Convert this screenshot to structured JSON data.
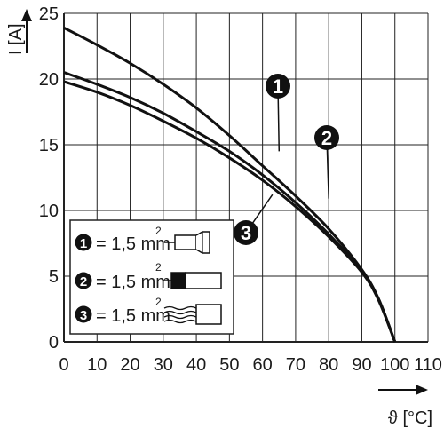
{
  "chart_data": {
    "type": "line",
    "title": "",
    "xlabel": "ϑ [°C]",
    "ylabel": "I [A]",
    "xlim": [
      0,
      110
    ],
    "ylim": [
      0,
      25
    ],
    "xticks": [
      0,
      10,
      20,
      30,
      40,
      50,
      60,
      70,
      80,
      90,
      100,
      110
    ],
    "yticks": [
      0,
      5,
      10,
      15,
      20,
      25
    ],
    "grid": true,
    "series": [
      {
        "name": "1",
        "x": [
          0,
          10,
          20,
          30,
          40,
          50,
          60,
          70,
          80,
          90,
          95,
          100
        ],
        "y": [
          23.9,
          22.6,
          21.2,
          19.6,
          17.8,
          15.7,
          13.4,
          11.1,
          8.6,
          5.5,
          3.3,
          0
        ]
      },
      {
        "name": "2",
        "x": [
          0,
          10,
          20,
          30,
          40,
          50,
          60,
          70,
          80,
          90,
          95,
          100
        ],
        "y": [
          20.5,
          19.6,
          18.6,
          17.4,
          16.0,
          14.5,
          12.7,
          10.6,
          8.2,
          5.4,
          3.3,
          0
        ]
      },
      {
        "name": "3",
        "x": [
          0,
          10,
          20,
          30,
          40,
          50,
          60,
          70,
          80,
          90,
          95,
          100
        ],
        "y": [
          19.8,
          19.0,
          18.0,
          16.8,
          15.5,
          14.0,
          12.3,
          10.3,
          8.0,
          5.3,
          3.2,
          0
        ]
      }
    ],
    "markers": [
      {
        "label": "1",
        "x": 65,
        "y": 14.5
      },
      {
        "label": "2",
        "x": 80,
        "y": 10.9
      },
      {
        "label": "3",
        "x": 63,
        "y": 11.2
      }
    ],
    "legend": {
      "placement": "lower-left",
      "entries": [
        {
          "num": "1",
          "text": "= 1,5 mm",
          "sup": "2",
          "icon": "ferrule-icon"
        },
        {
          "num": "2",
          "text": "= 1,5 mm",
          "sup": "2",
          "icon": "insulated-ferrule-icon"
        },
        {
          "num": "3",
          "text": "= 1,5 mm",
          "sup": "2",
          "icon": "stranded-wire-icon"
        }
      ]
    },
    "colors": {
      "line": "#111111",
      "grid": "#222222",
      "marker": "#111111",
      "background": "#ffffff"
    }
  }
}
